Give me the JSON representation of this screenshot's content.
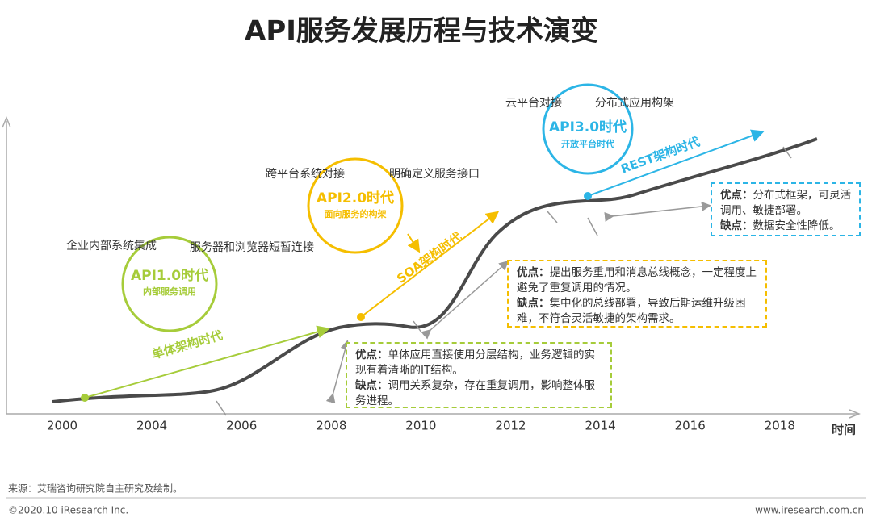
{
  "header": {
    "title": "API服务发展历程与技术演变"
  },
  "timeline": {
    "axis_label": "时间",
    "years": [
      "2000",
      "2004",
      "2006",
      "2008",
      "2010",
      "2012",
      "2014",
      "2016",
      "2018"
    ]
  },
  "eras": [
    {
      "name": "API1.0时代",
      "subtitle": "内部服务调用",
      "topics": [
        "企业内部系统集成",
        "服务器和浏览器短暂连接"
      ],
      "architecture": "单体架构时代",
      "evaluation": {
        "pros_label": "优点：",
        "pros": "单体应用直接使用分层结构，业务逻辑的实现有着清晰的IT结构。",
        "cons_label": "缺点：",
        "cons": "调用关系复杂，存在重复调用，影响整体服务进程。"
      }
    },
    {
      "name": "API2.0时代",
      "subtitle": "面向服务的构架",
      "topics": [
        "跨平台系统对接",
        "明确定义服务接口"
      ],
      "architecture": "SOA架构时代",
      "evaluation": {
        "pros_label": "优点：",
        "pros": "提出服务重用和消息总线概念，一定程度上避免了重复调用的情况。",
        "cons_label": "缺点：",
        "cons": "集中化的总线部署，导致后期运维升级困难，不符合灵活敏捷的架构需求。"
      }
    },
    {
      "name": "API3.0时代",
      "subtitle": "开放平台时代",
      "topics": [
        "云平台对接",
        "分布式应用构架"
      ],
      "architecture": "REST架构时代",
      "evaluation": {
        "pros_label": "优点：",
        "pros": "分布式框架，可灵活调用、敏捷部署。",
        "cons_label": "缺点：",
        "cons": "数据安全性降低。"
      }
    }
  ],
  "footer": {
    "source": "来源：艾瑞咨询研究院自主研究及绘制。",
    "copyright": "©2020.10 iResearch Inc.",
    "website": "www.iresearch.com.cn"
  }
}
